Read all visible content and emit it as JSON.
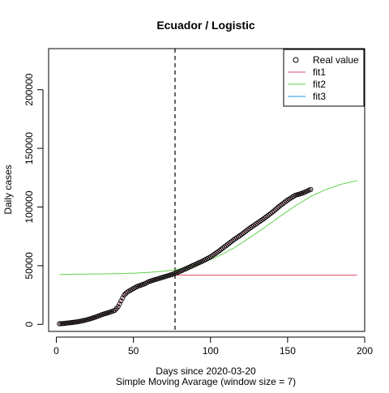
{
  "chart_data": {
    "type": "line",
    "title": "Ecuador / Logistic",
    "xlabel": "Days since 2020-03-20",
    "xlabel2": "Simple Moving Avarage (window size = 7)",
    "ylabel": "Daily cases",
    "xlim": [
      -5,
      200
    ],
    "ylim": [
      -6000,
      235000
    ],
    "x_ticks": [
      0,
      50,
      100,
      150,
      200
    ],
    "y_ticks": [
      0,
      50000,
      100000,
      150000,
      200000
    ],
    "vline_x": 77,
    "legend_position": "top-right",
    "legend": [
      "Real value",
      "fit1",
      "fit2",
      "fit3"
    ],
    "colors": {
      "real": "#000000",
      "fit1": "#DF536B",
      "fit2": "#61D04F",
      "fit3": "#2297E6",
      "vline": "#000000"
    },
    "real_value": {
      "x": [
        2,
        5,
        10,
        15,
        20,
        25,
        30,
        35,
        38,
        40,
        42,
        44,
        46,
        48,
        50,
        52,
        54,
        56,
        58,
        60,
        65,
        70,
        75,
        77,
        80,
        85,
        90,
        95,
        100,
        105,
        110,
        115,
        120,
        125,
        130,
        135,
        140,
        145,
        150,
        155,
        160,
        165
      ],
      "y": [
        500,
        800,
        1500,
        2500,
        4000,
        6000,
        8500,
        10500,
        12000,
        15000,
        20000,
        25000,
        27500,
        29000,
        30500,
        32000,
        33000,
        34000,
        35000,
        36500,
        38500,
        40500,
        42500,
        43500,
        45000,
        48000,
        51000,
        54000,
        57500,
        62000,
        67000,
        72000,
        76500,
        81500,
        86000,
        90500,
        95500,
        101000,
        106000,
        110000,
        112000,
        115000
      ]
    },
    "fit1": {
      "x": [
        77,
        195
      ],
      "y": [
        42000,
        42000
      ]
    },
    "fit2": {
      "x": [
        2,
        10,
        20,
        30,
        40,
        50,
        60,
        70,
        77,
        85,
        95,
        105,
        115,
        125,
        135,
        145,
        155,
        165,
        175,
        185,
        195
      ],
      "y": [
        42500,
        42700,
        42900,
        43000,
        43200,
        43600,
        44300,
        45400,
        46500,
        48500,
        52500,
        58000,
        65000,
        73500,
        82500,
        92000,
        101000,
        109000,
        115000,
        119500,
        122500
      ]
    }
  }
}
